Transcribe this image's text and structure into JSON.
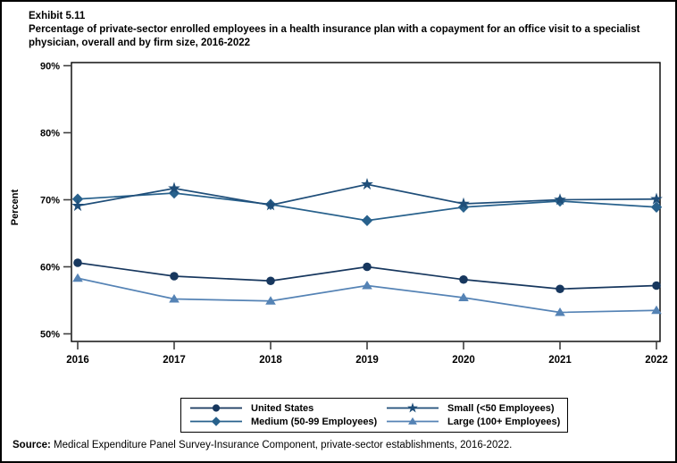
{
  "exhibit_label": "Exhibit 5.11",
  "title": "Percentage of private-sector enrolled employees in a health insurance plan with a copayment for an office visit to a specialist physician, overall and by firm size, 2016-2022",
  "source_prefix": "Source:",
  "source_text": " Medical Expenditure Panel Survey-Insurance Component, private-sector establishments, 2016-2022.",
  "chart_data": {
    "type": "line",
    "title": "Percentage of private-sector enrolled employees in a health insurance plan with a copayment for an office visit to a specialist physician, overall and by firm size, 2016-2022",
    "xlabel": "",
    "ylabel": "Percent",
    "x": [
      2016,
      2017,
      2018,
      2019,
      2020,
      2021,
      2022
    ],
    "ylim": [
      50,
      90
    ],
    "yticks": [
      50,
      60,
      70,
      80,
      90
    ],
    "ytick_labels": [
      "50%",
      "60%",
      "70%",
      "80%",
      "90%"
    ],
    "grid": false,
    "legend_position": "bottom-box",
    "frame_color": "#000000",
    "tick_color": "#404040",
    "series": [
      {
        "name": "United States",
        "marker": "circle",
        "color": "#17375E",
        "values": [
          60.6,
          58.6,
          57.9,
          60.0,
          58.1,
          56.7,
          57.2
        ]
      },
      {
        "name": "Medium (50-99 Employees)",
        "marker": "diamond",
        "color": "#28618C",
        "values": [
          70.1,
          71.0,
          69.3,
          66.9,
          68.9,
          69.8,
          68.9
        ]
      },
      {
        "name": "Small (<50 Employees)",
        "marker": "star",
        "color": "#1F4E79",
        "values": [
          69.1,
          71.7,
          69.2,
          72.3,
          69.4,
          70.0,
          70.1
        ]
      },
      {
        "name": "Large (100+ Employees)",
        "marker": "triangle",
        "color": "#5583B5",
        "values": [
          58.3,
          55.2,
          54.9,
          57.2,
          55.4,
          53.2,
          53.5
        ]
      }
    ]
  }
}
